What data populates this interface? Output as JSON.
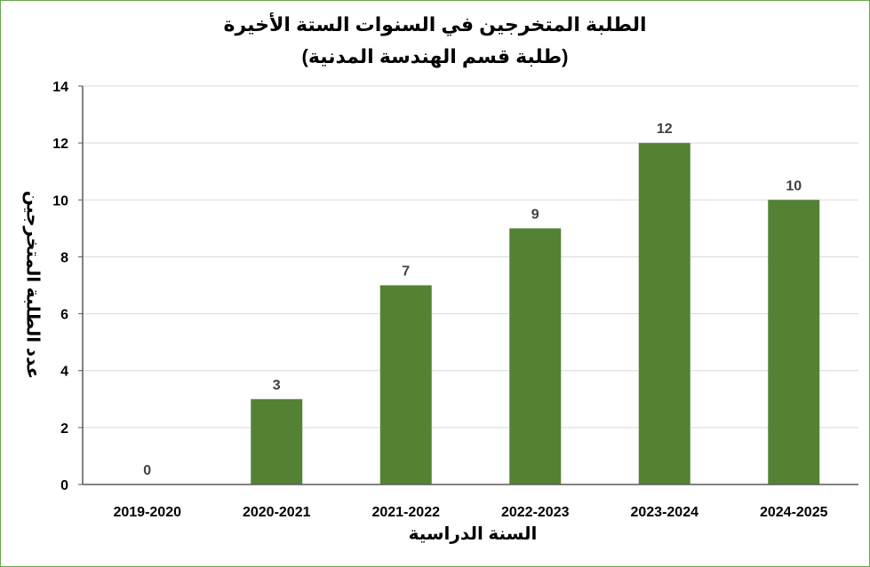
{
  "chart_data": {
    "type": "bar",
    "title": "الطلبة المتخرجين في السنوات الستة الأخيرة",
    "subtitle": "(طلبة قسم الهندسة المدنية)",
    "xlabel": "السنة الدراسية",
    "ylabel": "عدد الطلبة المتخرجين",
    "categories": [
      "2019-2020",
      "2020-2021",
      "2021-2022",
      "2022-2023",
      "2023-2024",
      "2024-2025"
    ],
    "values": [
      0,
      3,
      7,
      9,
      12,
      10
    ],
    "ylim": [
      0,
      14
    ],
    "yticks": [
      0,
      2,
      4,
      6,
      8,
      10,
      12,
      14
    ],
    "grid": true,
    "bar_color": "#548235",
    "data_labels": true
  }
}
